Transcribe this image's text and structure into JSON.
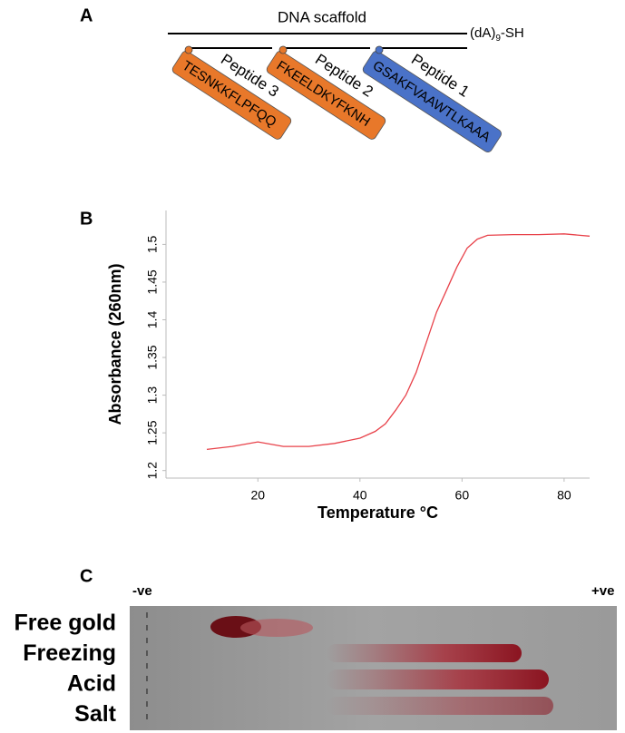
{
  "panel_a": {
    "label": "A",
    "scaffold": "DNA scaffold",
    "tail": [
      "(dA)",
      "9",
      "-SH"
    ],
    "peptides": [
      {
        "name": "Peptide 3",
        "sequence": "TESNKKFLPFQQ",
        "color": "#e8782a"
      },
      {
        "name": "Peptide 2",
        "sequence": "FKEELDKYFKNH",
        "color": "#e8782a"
      },
      {
        "name": "Peptide 1",
        "sequence": "GSAKFVAAWTLKAAA",
        "color": "#4a72c8"
      }
    ]
  },
  "chart_data": {
    "type": "line",
    "panel_label": "B",
    "x_label": "Temperature °C",
    "y_label": "Absorbance (260nm)",
    "x": [
      10,
      15,
      20,
      25,
      30,
      35,
      40,
      43,
      45,
      47,
      49,
      51,
      53,
      55,
      57,
      59,
      61,
      63,
      65,
      70,
      75,
      80,
      85
    ],
    "values": [
      1.228,
      1.232,
      1.238,
      1.232,
      1.232,
      1.236,
      1.243,
      1.252,
      1.262,
      1.28,
      1.3,
      1.33,
      1.37,
      1.41,
      1.44,
      1.47,
      1.495,
      1.507,
      1.512,
      1.513,
      1.513,
      1.514,
      1.511
    ],
    "color": "#e8424a",
    "xlim": [
      2,
      85
    ],
    "xticks": [
      20,
      40,
      60,
      80
    ],
    "ylim": [
      1.19,
      1.545
    ],
    "yticks": [
      1.2,
      1.25,
      1.3,
      1.35,
      1.4,
      1.45,
      1.5
    ]
  },
  "panel_c": {
    "label": "C",
    "negative": "-ve",
    "positive": "+ve",
    "lanes": [
      "Free gold",
      "Freezing",
      "Acid",
      "Salt"
    ]
  }
}
